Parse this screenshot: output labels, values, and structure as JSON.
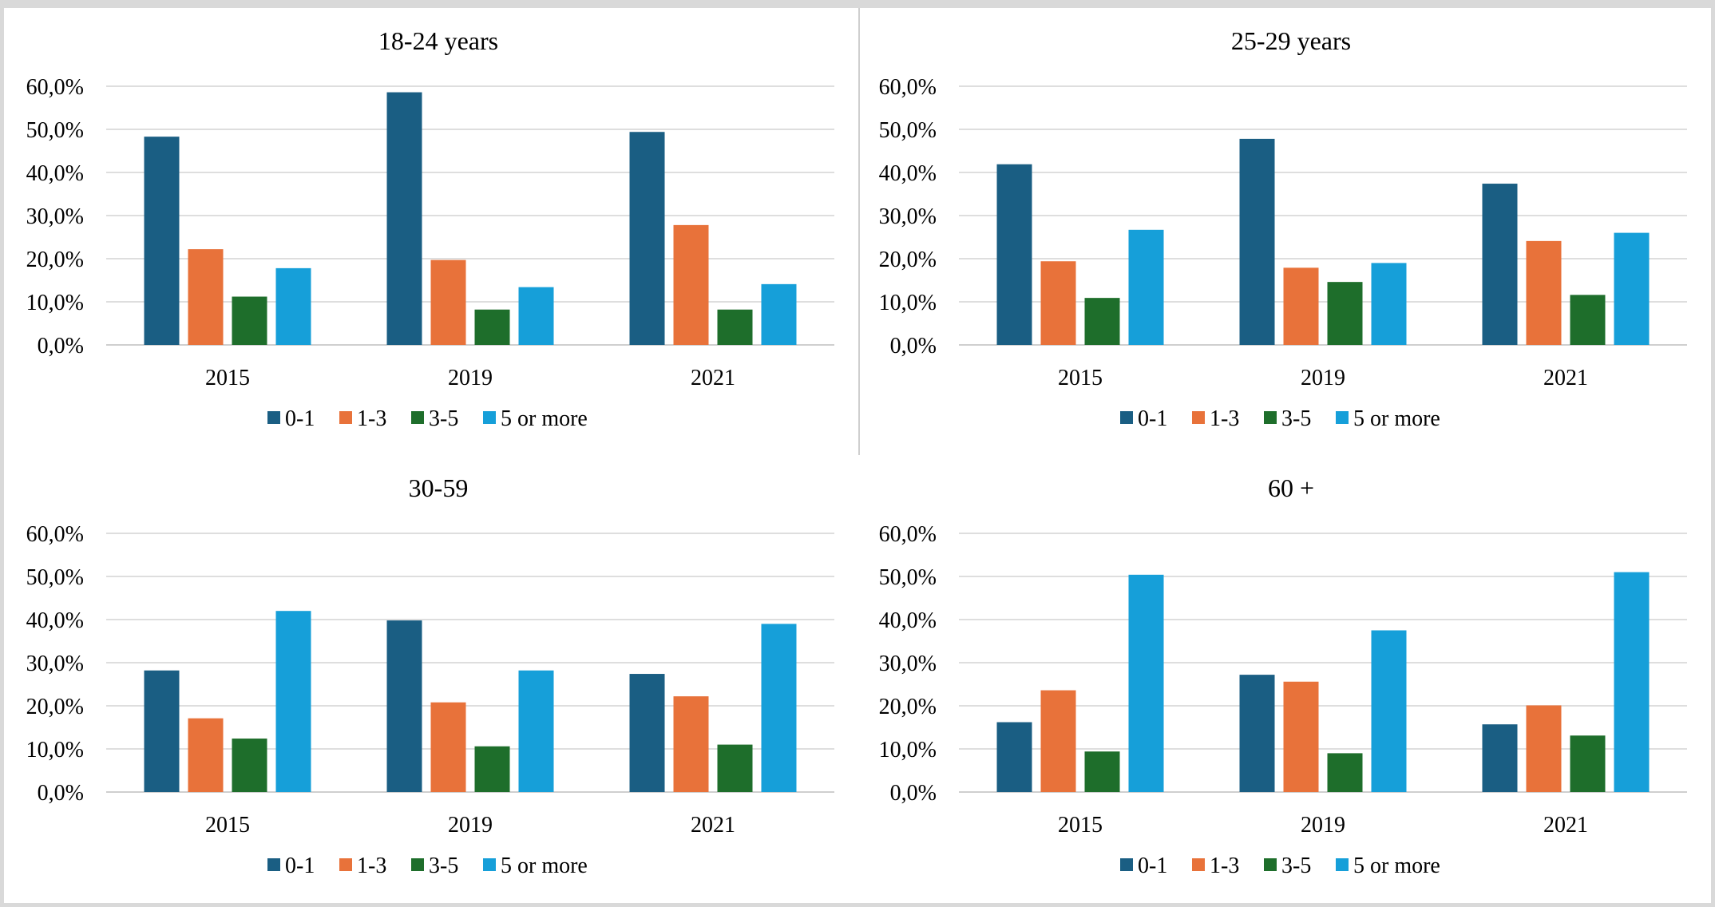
{
  "colors": {
    "series": [
      "#1a5e83",
      "#e8723a",
      "#1e6e2b",
      "#169fd9"
    ],
    "grid": "#d4d4d4",
    "axis": "#bfbfbf"
  },
  "chart_data": [
    {
      "type": "bar",
      "title": "18-24  years",
      "categories": [
        "2015",
        "2019",
        "2021"
      ],
      "ylim": [
        0,
        60
      ],
      "yticks": [
        "0,0%",
        "10,0%",
        "20,0%",
        "30,0%",
        "40,0%",
        "50,0%",
        "60,0%"
      ],
      "grid": true,
      "legend_position": "bottom",
      "series": [
        {
          "name": "0-1",
          "values": [
            48.3,
            58.6,
            49.4
          ]
        },
        {
          "name": "1-3",
          "values": [
            22.2,
            19.7,
            27.8
          ]
        },
        {
          "name": "3-5",
          "values": [
            11.2,
            8.2,
            8.2
          ]
        },
        {
          "name": "5 or more",
          "values": [
            17.8,
            13.4,
            14.1
          ]
        }
      ]
    },
    {
      "type": "bar",
      "title": "25-29  years",
      "categories": [
        "2015",
        "2019",
        "2021"
      ],
      "ylim": [
        0,
        60
      ],
      "yticks": [
        "0,0%",
        "10,0%",
        "20,0%",
        "30,0%",
        "40,0%",
        "50,0%",
        "60,0%"
      ],
      "grid": true,
      "legend_position": "bottom",
      "series": [
        {
          "name": "0-1",
          "values": [
            41.9,
            47.8,
            37.4
          ]
        },
        {
          "name": "1-3",
          "values": [
            19.4,
            17.9,
            24.1
          ]
        },
        {
          "name": "3-5",
          "values": [
            10.9,
            14.6,
            11.6
          ]
        },
        {
          "name": "5 or more",
          "values": [
            26.7,
            19.0,
            26.0
          ]
        }
      ]
    },
    {
      "type": "bar",
      "title": "30-59",
      "categories": [
        "2015",
        "2019",
        "2021"
      ],
      "ylim": [
        0,
        60
      ],
      "yticks": [
        "0,0%",
        "10,0%",
        "20,0%",
        "30,0%",
        "40,0%",
        "50,0%",
        "60,0%"
      ],
      "grid": true,
      "legend_position": "bottom",
      "series": [
        {
          "name": "0-1",
          "values": [
            28.2,
            39.8,
            27.4
          ]
        },
        {
          "name": "1-3",
          "values": [
            17.1,
            20.8,
            22.2
          ]
        },
        {
          "name": "3-5",
          "values": [
            12.4,
            10.6,
            11.0
          ]
        },
        {
          "name": "5 or more",
          "values": [
            42.0,
            28.2,
            39.0
          ]
        }
      ]
    },
    {
      "type": "bar",
      "title": "60 +",
      "categories": [
        "2015",
        "2019",
        "2021"
      ],
      "ylim": [
        0,
        60
      ],
      "yticks": [
        "0,0%",
        "10,0%",
        "20,0%",
        "30,0%",
        "40,0%",
        "50,0%",
        "60,0%"
      ],
      "grid": true,
      "legend_position": "bottom",
      "series": [
        {
          "name": "0-1",
          "values": [
            16.2,
            27.2,
            15.7
          ]
        },
        {
          "name": "1-3",
          "values": [
            23.6,
            25.6,
            20.1
          ]
        },
        {
          "name": "3-5",
          "values": [
            9.4,
            9.0,
            13.1
          ]
        },
        {
          "name": "5 or more",
          "values": [
            50.4,
            37.5,
            51.0
          ]
        }
      ]
    }
  ]
}
